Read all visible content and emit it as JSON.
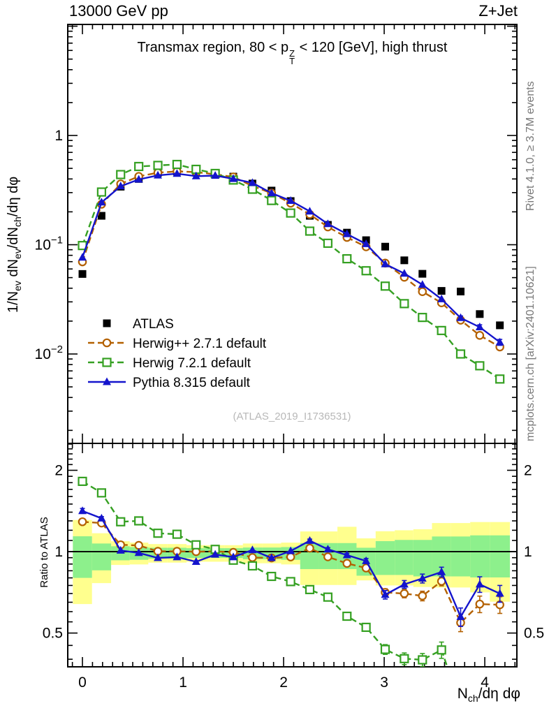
{
  "header": {
    "title_left": "13000 GeV pp",
    "title_right": "Z+Jet"
  },
  "subtitle": {
    "prefix": "Transmax region, 80 < p",
    "sup": "Z",
    "sub": "T",
    "suffix": " < 120 [GeV], high thrust"
  },
  "side_notes": {
    "rivet": "Rivet 4.1.0, ≥ 3.7M events",
    "mcplots": "mcplots.cern.ch [arXiv:2401.10621]"
  },
  "watermark": "(ATLAS_2019_I1736531)",
  "axis_labels": {
    "y_main": {
      "p1": "1/N",
      "s1": "ev",
      "p2": " dN",
      "s2": "ev",
      "p3": "/dN",
      "s3": "ch",
      "p4": "/dη dφ"
    },
    "ratio": "Ratio to ATLAS",
    "x": {
      "p1": "N",
      "s1": "ch",
      "p2": "/dη dφ"
    }
  },
  "chart_data": {
    "type": "line",
    "title": "Transmax region, 80 < pT(Z) < 120 [GeV], high thrust",
    "xlabel": "N_ch/dη dφ",
    "ylabel": "1/N_ev dN_ev/dN_ch/dη dφ",
    "x": [
      0,
      0.19,
      0.38,
      0.56,
      0.75,
      0.94,
      1.13,
      1.32,
      1.5,
      1.69,
      1.88,
      2.07,
      2.26,
      2.44,
      2.63,
      2.82,
      3.01,
      3.2,
      3.38,
      3.57,
      3.76,
      3.95,
      4.15
    ],
    "x_axis": {
      "min": -0.146,
      "max": 4.319,
      "minor_step": 0.1,
      "ticks": [
        {
          "v": 0,
          "label": "0"
        },
        {
          "v": 1,
          "label": "1"
        },
        {
          "v": 2,
          "label": "2"
        },
        {
          "v": 3,
          "label": "3"
        },
        {
          "v": 4,
          "label": "4"
        }
      ]
    },
    "y_main_axis": {
      "scale": "log",
      "min": 0.00152,
      "max": 10.38,
      "ticks": [
        {
          "v": 1,
          "label": "1"
        },
        {
          "v": 0.1,
          "label": "10^{−1}"
        },
        {
          "v": 0.01,
          "label": "10^{−2}"
        }
      ]
    },
    "ratio_axis": {
      "scale": "log",
      "min": 0.375,
      "max": 2.515,
      "ticks": [
        {
          "v": 2,
          "label": "2"
        },
        {
          "v": 1,
          "label": "1"
        },
        {
          "v": 0.5,
          "label": "0.5"
        }
      ],
      "minor": [
        0.4,
        0.45,
        0.55,
        0.6,
        0.65,
        0.7,
        0.75,
        0.8,
        0.85,
        0.9,
        0.95,
        1.1,
        1.2,
        1.3,
        1.4,
        1.5,
        1.6,
        1.7,
        1.8,
        1.9,
        2.1,
        2.2,
        2.3,
        2.4,
        2.5
      ]
    },
    "series": [
      {
        "name": "ATLAS",
        "color": "#000000",
        "marker": "square-filled",
        "line": "none",
        "values": [
          0.054,
          0.184,
          0.34,
          0.4,
          0.455,
          0.468,
          0.462,
          0.44,
          0.42,
          0.363,
          0.313,
          0.251,
          0.184,
          0.152,
          0.129,
          0.11,
          0.096,
          0.072,
          0.0542,
          0.0378,
          0.0373,
          0.0232,
          0.0183
        ],
        "main_err": null,
        "ratio": null,
        "ratio_err": null
      },
      {
        "name": "Herwig++ 2.7.1 default",
        "color": "#b36000",
        "marker": "circle-open",
        "line": "dashed",
        "values": [
          0.0697,
          0.2348,
          0.3604,
          0.422,
          0.4564,
          0.4694,
          0.462,
          0.4413,
          0.4175,
          0.3452,
          0.2967,
          0.24,
          0.1895,
          0.1455,
          0.1167,
          0.0957,
          0.0679,
          0.0504,
          0.0372,
          0.0294,
          0.0204,
          0.0148,
          0.0116
        ],
        "main_err": [
          0,
          0,
          0,
          0,
          0,
          0,
          0,
          0,
          0,
          0,
          0,
          0,
          0,
          0,
          0,
          0,
          0,
          0,
          0,
          0,
          0.0009,
          0.0008,
          0.0007
        ],
        "ratio": [
          1.29,
          1.276,
          1.06,
          1.055,
          1.003,
          1.003,
          1.0,
          1.003,
          0.994,
          0.951,
          0.948,
          0.956,
          1.03,
          0.957,
          0.905,
          0.87,
          0.707,
          0.7,
          0.686,
          0.777,
          0.546,
          0.64,
          0.636
        ],
        "ratio_err": [
          0.025,
          0.02,
          0,
          0,
          0,
          0,
          0,
          0,
          0,
          0,
          0,
          0,
          0.012,
          0.012,
          0.015,
          0.018,
          0.022,
          0.025,
          0.028,
          0.03,
          0.04,
          0.045,
          0.045
        ]
      },
      {
        "name": "Herwig 7.2.1 default",
        "color": "#35a022",
        "marker": "square-open",
        "line": "dashed",
        "values": [
          0.0983,
          0.3036,
          0.4386,
          0.52,
          0.532,
          0.543,
          0.49,
          0.449,
          0.391,
          0.322,
          0.254,
          0.195,
          0.1332,
          0.1032,
          0.0744,
          0.0578,
          0.0418,
          0.0289,
          0.0216,
          0.0164,
          0.01,
          0.0078,
          0.0059
        ],
        "main_err": [
          0,
          0,
          0,
          0,
          0,
          0,
          0,
          0,
          0,
          0,
          0,
          0,
          0,
          0,
          0,
          0,
          0,
          0,
          0,
          0.0008,
          0.0006,
          0.0005,
          0.0004
        ],
        "ratio": [
          1.82,
          1.65,
          1.29,
          1.3,
          1.17,
          1.16,
          1.06,
          1.02,
          0.93,
          0.886,
          0.81,
          0.775,
          0.724,
          0.679,
          0.577,
          0.525,
          0.435,
          0.402,
          0.398,
          0.433,
          0.268,
          null,
          null
        ],
        "ratio_err": [
          0.04,
          0.03,
          0.02,
          0.02,
          0.015,
          0.015,
          0.012,
          0.012,
          0.01,
          0.01,
          0.01,
          0.01,
          0.012,
          0.012,
          0.012,
          0.015,
          0.018,
          0.02,
          0.022,
          0.03,
          0,
          0,
          0
        ]
      },
      {
        "name": "Pythia 8.315 default",
        "color": "#1414cc",
        "marker": "triangle-filled",
        "line": "solid",
        "values": [
          0.0764,
          0.2444,
          0.3434,
          0.396,
          0.4313,
          0.4469,
          0.4241,
          0.4294,
          0.4011,
          0.3681,
          0.2967,
          0.2525,
          0.202,
          0.155,
          0.1253,
          0.1016,
          0.0665,
          0.0545,
          0.0431,
          0.0318,
          0.0214,
          0.0176,
          0.0128
        ],
        "main_err": [
          0,
          0,
          0,
          0,
          0,
          0,
          0,
          0,
          0,
          0,
          0,
          0,
          0,
          0,
          0,
          0,
          0,
          0,
          0,
          0,
          0.0009,
          0.0009,
          0.0008
        ],
        "ratio": [
          1.415,
          1.328,
          1.01,
          0.99,
          0.948,
          0.955,
          0.918,
          0.976,
          0.955,
          1.014,
          0.948,
          1.006,
          1.098,
          1.02,
          0.971,
          0.924,
          0.693,
          0.757,
          0.796,
          0.841,
          0.574,
          0.757,
          0.7
        ],
        "ratio_err": [
          0.03,
          0.02,
          0,
          0,
          0,
          0,
          0,
          0,
          0,
          0,
          0,
          0,
          0.015,
          0.015,
          0.015,
          0.02,
          0.025,
          0.025,
          0.03,
          0.035,
          0.045,
          0.05,
          0.05
        ]
      }
    ],
    "bands": {
      "yellow_color": "#ffff8e",
      "green_color": "#8df08c",
      "yellow_lo": [
        0.64,
        0.765,
        0.893,
        0.897,
        0.911,
        0.911,
        0.918,
        0.918,
        0.918,
        0.906,
        0.906,
        0.897,
        0.753,
        0.753,
        0.753,
        0.783,
        0.75,
        0.75,
        0.74,
        0.737,
        0.737,
        0.707,
        0.653
      ],
      "yellow_hi": [
        1.31,
        1.17,
        1.093,
        1.08,
        1.067,
        1.067,
        1.057,
        1.057,
        1.057,
        1.072,
        1.072,
        1.08,
        1.188,
        1.188,
        1.236,
        1.12,
        1.19,
        1.2,
        1.21,
        1.276,
        1.276,
        1.287,
        1.287
      ],
      "green_lo": [
        0.8,
        0.853,
        0.929,
        0.933,
        0.942,
        0.942,
        0.948,
        0.948,
        0.948,
        0.938,
        0.938,
        0.933,
        0.862,
        0.862,
        0.862,
        0.815,
        0.82,
        0.82,
        0.81,
        0.81,
        0.81,
        0.803,
        0.803
      ],
      "green_hi": [
        1.14,
        1.072,
        1.047,
        1.04,
        1.034,
        1.034,
        1.03,
        1.03,
        1.03,
        1.036,
        1.036,
        1.04,
        1.076,
        1.076,
        1.076,
        1.034,
        1.094,
        1.105,
        1.105,
        1.138,
        1.138,
        1.149,
        1.149
      ]
    },
    "legend_position": "upper-left-inside",
    "grid": false
  }
}
